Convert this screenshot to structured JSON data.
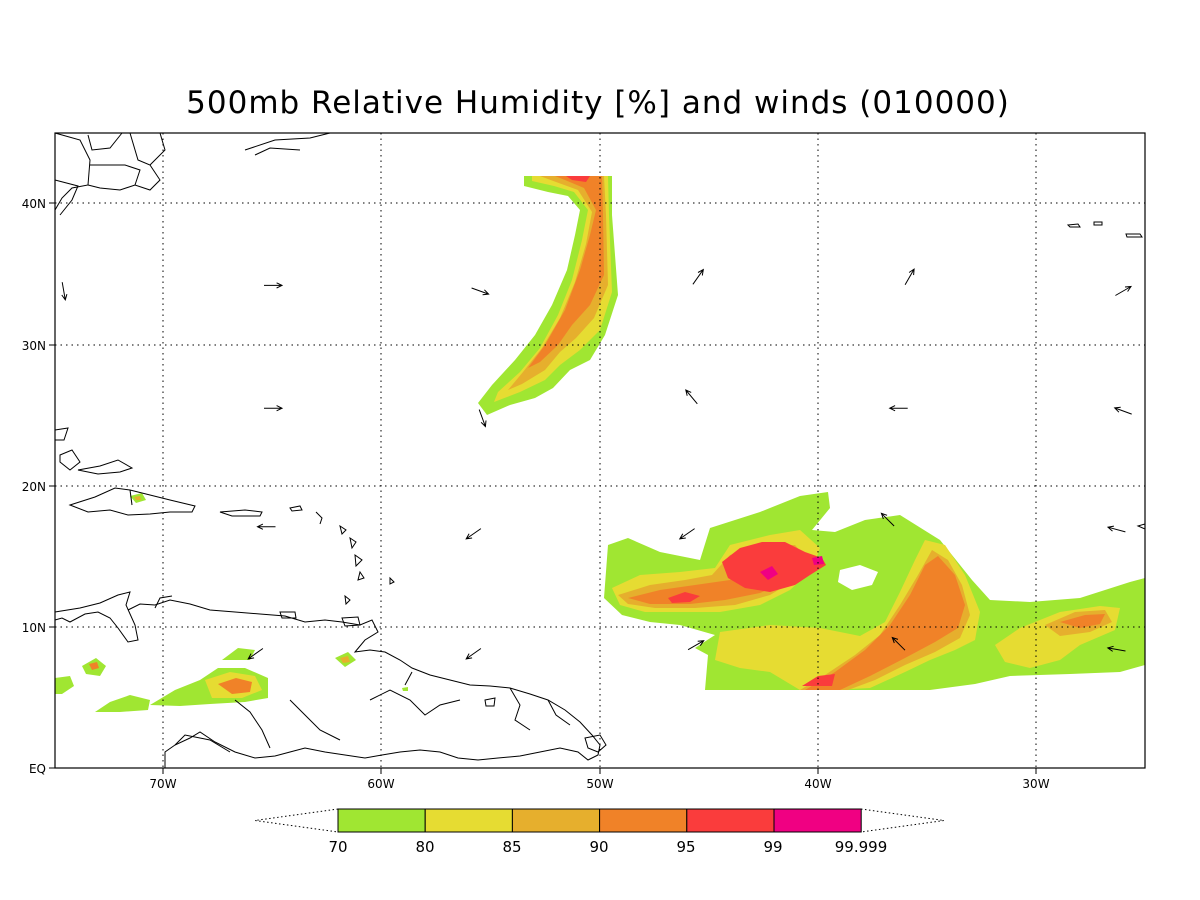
{
  "title": "500mb Relative Humidity [%] and winds (010000)",
  "axes": {
    "lat_labels": [
      "40N",
      "30N",
      "20N",
      "10N",
      "EQ"
    ],
    "lon_labels": [
      "70W",
      "60W",
      "50W",
      "40W",
      "30W"
    ]
  },
  "map_extent": {
    "lon": [
      -75,
      -25
    ],
    "lat": [
      0,
      45
    ]
  },
  "colorbar": {
    "labels": [
      "70",
      "80",
      "85",
      "90",
      "95",
      "99",
      "99.999"
    ],
    "colors": [
      "#a0e632",
      "#e6dc32",
      "#e6af2d",
      "#f08228",
      "#fa3c3c",
      "#f00082"
    ]
  },
  "field": {
    "variable": "500mb relative humidity",
    "units": "%",
    "levels": [
      70,
      80,
      85,
      90,
      95,
      99,
      99.999
    ]
  },
  "wind_vectors": [
    {
      "lon": -65,
      "lat": 34.2,
      "dir_deg": 90
    },
    {
      "lon": -55.5,
      "lat": 33.8,
      "dir_deg": 110
    },
    {
      "lon": -45.5,
      "lat": 34.8,
      "dir_deg": 35
    },
    {
      "lon": -35.8,
      "lat": 34.8,
      "dir_deg": 30
    },
    {
      "lon": -26,
      "lat": 33.8,
      "dir_deg": 60
    },
    {
      "lon": -65,
      "lat": 25.5,
      "dir_deg": 90
    },
    {
      "lon": -55.4,
      "lat": 24.8,
      "dir_deg": 160
    },
    {
      "lon": -45.8,
      "lat": 26.3,
      "dir_deg": 320
    },
    {
      "lon": -36.3,
      "lat": 25.5,
      "dir_deg": 270
    },
    {
      "lon": -26,
      "lat": 25.3,
      "dir_deg": 290
    },
    {
      "lon": -65.3,
      "lat": 17.1,
      "dir_deg": 270
    },
    {
      "lon": -55.8,
      "lat": 16.6,
      "dir_deg": 235
    },
    {
      "lon": -46,
      "lat": 16.6,
      "dir_deg": 235
    },
    {
      "lon": -36.8,
      "lat": 17.6,
      "dir_deg": 315
    },
    {
      "lon": -26.3,
      "lat": 16.9,
      "dir_deg": 285
    },
    {
      "lon": -65.8,
      "lat": 8.1,
      "dir_deg": 235
    },
    {
      "lon": -55.8,
      "lat": 8.1,
      "dir_deg": 235
    },
    {
      "lon": -45.6,
      "lat": 8.7,
      "dir_deg": 60
    },
    {
      "lon": -36.3,
      "lat": 8.8,
      "dir_deg": 315
    },
    {
      "lon": -26.3,
      "lat": 8.4,
      "dir_deg": 280
    },
    {
      "lon": -74.6,
      "lat": 33.8,
      "dir_deg": 170
    }
  ]
}
